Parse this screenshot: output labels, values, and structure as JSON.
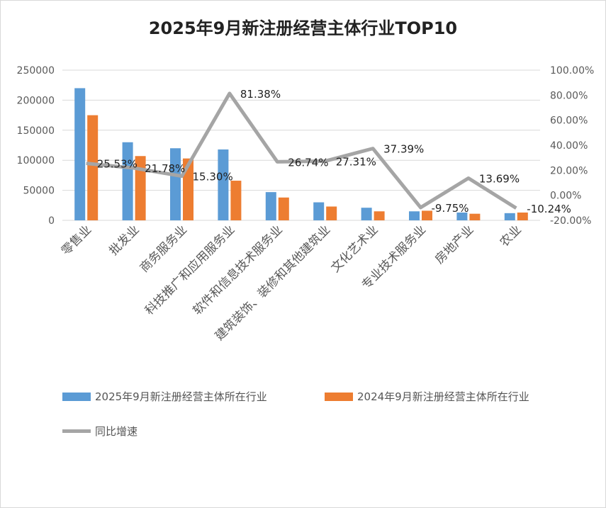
{
  "chart_data": {
    "type": "bar",
    "title": "2025年9月新注册经营主体行业TOP10",
    "categories": [
      "零售业",
      "批发业",
      "商务服务业",
      "科技推广和应用服务业",
      "软件和信息技术服务业",
      "建筑装饰、装修和其他建筑业",
      "文化艺术业",
      "专业技术服务业",
      "房地产业",
      "农业"
    ],
    "series": [
      {
        "name": "2025年9月新注册经营主体所在行业",
        "type": "bar",
        "axis": "left",
        "color": "#5B9BD5",
        "values": [
          220000,
          130000,
          120000,
          118000,
          47000,
          30000,
          21000,
          15000,
          13000,
          12000
        ]
      },
      {
        "name": "2024年9月新注册经营主体所在行业",
        "type": "bar",
        "axis": "left",
        "color": "#ED7D31",
        "values": [
          175000,
          107000,
          103000,
          66000,
          38000,
          23000,
          15000,
          16000,
          11000,
          13000
        ]
      },
      {
        "name": "同比增速",
        "type": "line",
        "axis": "right",
        "color": "#A5A5A5",
        "values": [
          25.53,
          21.78,
          15.3,
          81.38,
          26.74,
          27.31,
          37.39,
          -9.75,
          13.69,
          -10.24
        ],
        "labels": [
          "25.53%",
          "21.78%",
          "15.30%",
          "81.38%",
          "26.74%",
          "27.31%",
          "37.39%",
          "-9.75%",
          "13.69%",
          "-10.24%"
        ]
      }
    ],
    "y_left": {
      "range": [
        0,
        250000
      ],
      "ticks": [
        "0",
        "50000",
        "100000",
        "150000",
        "200000",
        "250000"
      ]
    },
    "y_right": {
      "range": [
        -20,
        100
      ],
      "ticks": [
        "-20.00%",
        "0.00%",
        "20.00%",
        "40.00%",
        "60.00%",
        "80.00%",
        "100.00%"
      ]
    },
    "grid": true,
    "legend_position": "bottom"
  }
}
